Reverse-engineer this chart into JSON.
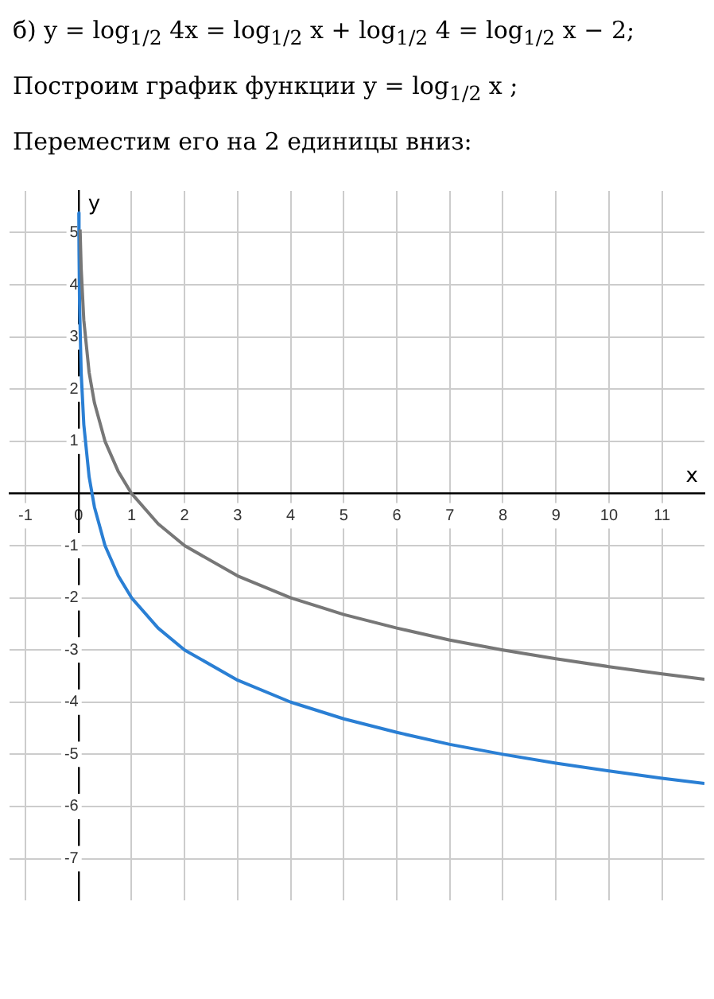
{
  "chart_data": {
    "type": "line",
    "title": "б) y = log$_{1/2}$ 4x = log$_{1/2}$ x + log$_{1/2}$ 4 = log$_{1/2}$ x − 2;",
    "subtitle": "Построим график функции y = log$_{1/2}$ x ;",
    "annotations": [
      "Переместим его на 2 единицы вниз:"
    ],
    "xlabel": "x",
    "ylabel": "y",
    "xlim": [
      -1.3,
      11.8
    ],
    "ylim": [
      -7.8,
      5.8
    ],
    "xticks": [
      -1,
      0,
      1,
      2,
      3,
      4,
      5,
      6,
      7,
      8,
      9,
      10,
      11
    ],
    "yticks": [
      -7,
      -6,
      -5,
      -4,
      -3,
      -2,
      -1,
      1,
      2,
      3,
      4,
      5
    ],
    "grid": true,
    "legend": false,
    "marker": "none",
    "line_style": "solid",
    "series": [
      {
        "color": "#777777",
        "x": [
          0.03,
          0.05,
          0.1,
          0.2,
          0.3,
          0.5,
          0.75,
          1,
          1.5,
          2,
          3,
          4,
          5,
          6,
          7,
          8,
          9,
          10,
          11,
          11.8
        ],
        "values": [
          5.06,
          4.32,
          3.32,
          2.32,
          1.74,
          1,
          0.42,
          0,
          -0.58,
          -1,
          -1.58,
          -2,
          -2.32,
          -2.58,
          -2.81,
          -3,
          -3.17,
          -3.32,
          -3.46,
          -3.56
        ]
      },
      {
        "color": "#2a7fd4",
        "x": [
          0.006,
          0.01,
          0.02,
          0.05,
          0.1,
          0.2,
          0.3,
          0.5,
          0.75,
          1,
          1.5,
          2,
          3,
          4,
          5,
          6,
          7,
          8,
          9,
          10,
          11,
          11.8
        ],
        "values": [
          5.38,
          4.64,
          3.64,
          2.32,
          1.32,
          0.32,
          -0.26,
          -1,
          -1.58,
          -2,
          -2.58,
          -3,
          -3.58,
          -4,
          -4.32,
          -4.58,
          -4.81,
          -5,
          -5.17,
          -5.32,
          -5.46,
          -5.56
        ]
      }
    ]
  }
}
